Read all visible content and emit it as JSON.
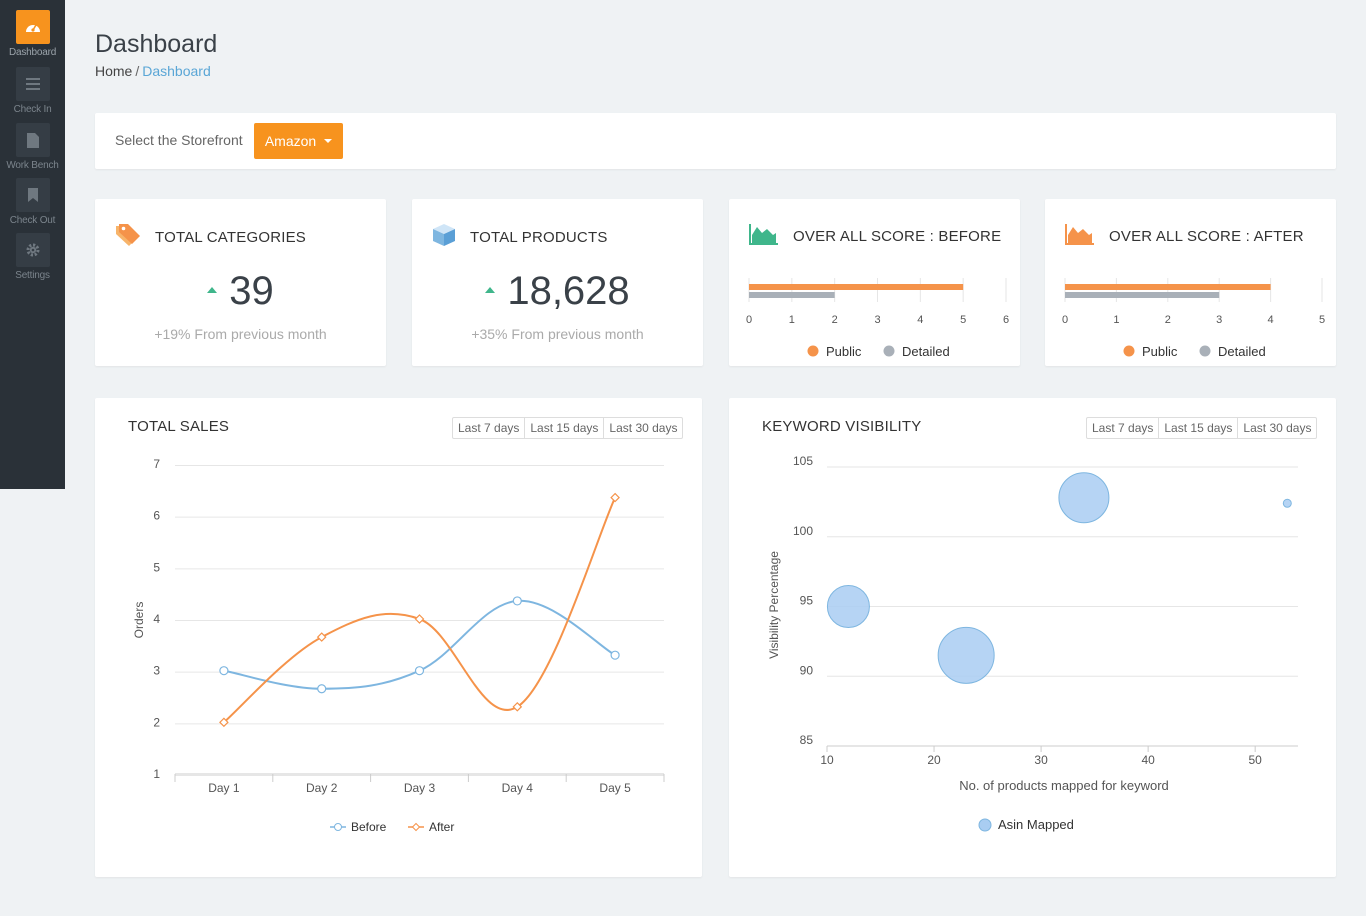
{
  "sidebar": {
    "items": [
      {
        "label": "Dashboard",
        "icon": "speedometer-icon",
        "active": true
      },
      {
        "label": "Check In",
        "icon": "list-icon",
        "active": false
      },
      {
        "label": "Work Bench",
        "icon": "document-icon",
        "active": false
      },
      {
        "label": "Check Out",
        "icon": "bookmark-icon",
        "active": false
      },
      {
        "label": "Settings",
        "icon": "gear-icon",
        "active": false
      }
    ]
  },
  "header": {
    "title": "Dashboard",
    "breadcrumb": {
      "home": "Home",
      "separator": "/",
      "current": "Dashboard"
    }
  },
  "storefront": {
    "label": "Select the Storefront",
    "selected": "Amazon"
  },
  "stats": [
    {
      "title": "TOTAL CATEGORIES",
      "value": "39",
      "change": "+19% From previous month",
      "icon": "tag-icon"
    },
    {
      "title": "TOTAL PRODUCTS",
      "value": "18,628",
      "change": "+35% From previous month",
      "icon": "box-icon"
    }
  ],
  "scores": [
    {
      "title": "OVER ALL SCORE : BEFORE",
      "icon": "area-chart-icon",
      "icon_color": "#3fb68b",
      "chart_data": {
        "type": "bar",
        "orientation": "horizontal",
        "xlim": [
          0,
          6
        ],
        "ticks": [
          "0",
          "1",
          "2",
          "3",
          "4",
          "5",
          "6"
        ],
        "series": [
          {
            "name": "Public",
            "values": [
              5
            ],
            "color": "#f5934a"
          },
          {
            "name": "Detailed",
            "values": [
              2
            ],
            "color": "#a9b0b8"
          }
        ]
      }
    },
    {
      "title": "OVER ALL SCORE : AFTER",
      "icon": "area-chart-icon",
      "icon_color": "#f5934a",
      "chart_data": {
        "type": "bar",
        "orientation": "horizontal",
        "xlim": [
          0,
          5
        ],
        "ticks": [
          "0",
          "1",
          "2",
          "3",
          "4",
          "5"
        ],
        "series": [
          {
            "name": "Public",
            "values": [
              4
            ],
            "color": "#f5934a"
          },
          {
            "name": "Detailed",
            "values": [
              3
            ],
            "color": "#a9b0b8"
          }
        ]
      }
    }
  ],
  "range_options": [
    "Last 7 days",
    "Last 15 days",
    "Last 30 days"
  ],
  "sales": {
    "title": "TOTAL SALES",
    "chart_data": {
      "type": "line",
      "categories": [
        "Day 1",
        "Day 2",
        "Day 3",
        "Day 4",
        "Day 5"
      ],
      "ylabel": "Orders",
      "ylim": [
        1,
        7
      ],
      "yticks": [
        "1",
        "2",
        "3",
        "4",
        "5",
        "6",
        "7"
      ],
      "series": [
        {
          "name": "Before",
          "values": [
            3.0,
            2.65,
            3.0,
            4.35,
            3.3
          ],
          "color": "#7eb6e0"
        },
        {
          "name": "After",
          "values": [
            2.0,
            3.65,
            4.0,
            2.3,
            6.35
          ],
          "color": "#f5934a"
        }
      ]
    }
  },
  "keywords": {
    "title": "KEYWORD VISIBILITY",
    "chart_data": {
      "type": "scatter",
      "xlabel": "No. of products mapped for keyword",
      "ylabel": "Visibility Percentage",
      "xlim": [
        10,
        54
      ],
      "ylim": [
        85,
        105
      ],
      "xticks": [
        "10",
        "20",
        "30",
        "40",
        "50"
      ],
      "yticks": [
        "85",
        "90",
        "95",
        "100",
        "105"
      ],
      "series": [
        {
          "name": "Asin Mapped",
          "color": "#a9cdf2",
          "points": [
            {
              "x": 12,
              "y": 95,
              "size": 21
            },
            {
              "x": 23,
              "y": 91.5,
              "size": 28
            },
            {
              "x": 34,
              "y": 102.8,
              "size": 25
            },
            {
              "x": 53,
              "y": 102.4,
              "size": 4
            }
          ]
        }
      ]
    }
  }
}
